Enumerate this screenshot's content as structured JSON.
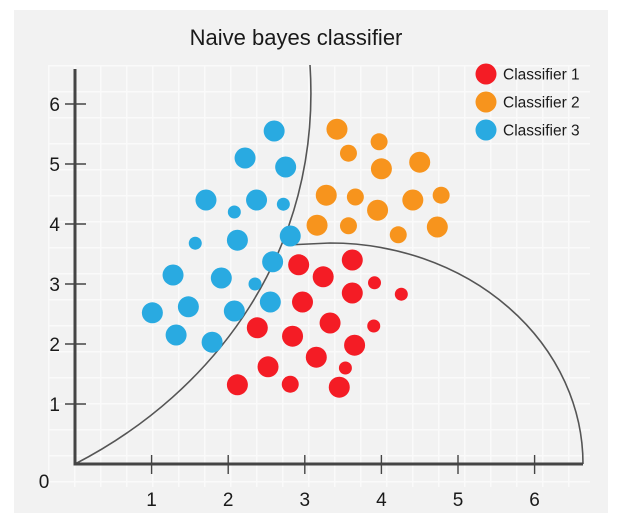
{
  "chart_data": {
    "type": "scatter",
    "title": "Naive bayes classifier",
    "xlim": [
      0,
      6.6
    ],
    "ylim": [
      0,
      6.6
    ],
    "x_ticks": [
      "1",
      "2",
      "3",
      "4",
      "5",
      "6"
    ],
    "y_ticks": [
      "1",
      "2",
      "3",
      "4",
      "5",
      "6"
    ],
    "origin_label": "0",
    "grid": true,
    "legend_position": "top-right",
    "series": [
      {
        "name": "Classifier 1",
        "color": "#f41c25",
        "points": [
          [
            2.92,
            3.32,
            "L"
          ],
          [
            3.62,
            3.4,
            "L"
          ],
          [
            3.24,
            3.12,
            "L"
          ],
          [
            3.91,
            3.02,
            "S"
          ],
          [
            4.26,
            2.83,
            "S"
          ],
          [
            2.97,
            2.7,
            "L"
          ],
          [
            3.62,
            2.85,
            "L"
          ],
          [
            3.33,
            2.35,
            "L"
          ],
          [
            3.9,
            2.3,
            "S"
          ],
          [
            2.38,
            2.27,
            "L"
          ],
          [
            2.84,
            2.13,
            "L"
          ],
          [
            3.65,
            1.98,
            "L"
          ],
          [
            2.52,
            1.62,
            "L"
          ],
          [
            3.15,
            1.78,
            "L"
          ],
          [
            3.53,
            1.6,
            "S"
          ],
          [
            2.12,
            1.32,
            "L"
          ],
          [
            2.81,
            1.33,
            "M"
          ],
          [
            3.45,
            1.28,
            "L"
          ]
        ]
      },
      {
        "name": "Classifier 2",
        "color": "#f7941d",
        "points": [
          [
            3.42,
            5.58,
            "L"
          ],
          [
            3.57,
            5.18,
            "M"
          ],
          [
            3.97,
            5.37,
            "M"
          ],
          [
            4.0,
            4.92,
            "L"
          ],
          [
            4.5,
            5.03,
            "L"
          ],
          [
            3.28,
            4.48,
            "L"
          ],
          [
            3.66,
            4.45,
            "M"
          ],
          [
            3.95,
            4.23,
            "L"
          ],
          [
            4.41,
            4.4,
            "L"
          ],
          [
            4.78,
            4.48,
            "M"
          ],
          [
            3.16,
            3.98,
            "L"
          ],
          [
            3.57,
            3.97,
            "M"
          ],
          [
            4.22,
            3.82,
            "M"
          ],
          [
            4.73,
            3.95,
            "L"
          ]
        ]
      },
      {
        "name": "Classifier 3",
        "color": "#29aae1",
        "points": [
          [
            2.6,
            5.55,
            "L"
          ],
          [
            2.22,
            5.1,
            "L"
          ],
          [
            2.75,
            4.95,
            "L"
          ],
          [
            1.71,
            4.4,
            "L"
          ],
          [
            2.08,
            4.2,
            "S"
          ],
          [
            2.37,
            4.4,
            "L"
          ],
          [
            2.72,
            4.33,
            "S"
          ],
          [
            1.57,
            3.68,
            "S"
          ],
          [
            2.12,
            3.73,
            "L"
          ],
          [
            2.81,
            3.8,
            "L"
          ],
          [
            2.58,
            3.37,
            "L"
          ],
          [
            1.28,
            3.15,
            "L"
          ],
          [
            1.91,
            3.1,
            "L"
          ],
          [
            2.35,
            3.0,
            "S"
          ],
          [
            1.01,
            2.52,
            "L"
          ],
          [
            1.48,
            2.62,
            "L"
          ],
          [
            2.08,
            2.55,
            "L"
          ],
          [
            2.55,
            2.7,
            "L"
          ],
          [
            1.32,
            2.15,
            "L"
          ],
          [
            1.79,
            2.03,
            "L"
          ]
        ]
      }
    ]
  }
}
